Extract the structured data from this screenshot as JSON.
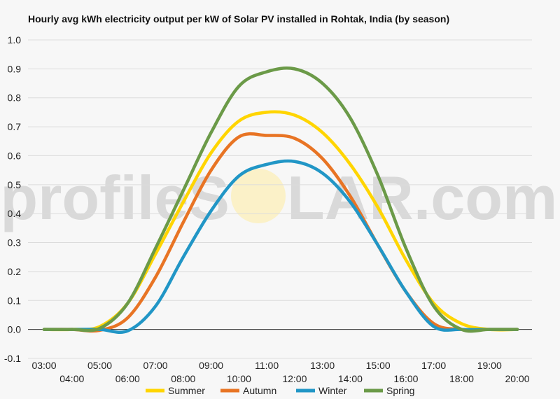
{
  "watermark": {
    "left": "profileS",
    "right": "LAR.com"
  },
  "chart_data": {
    "type": "line",
    "title": "Hourly avg kWh electricity output per kW of Solar PV installed in Rohtak, India (by season)",
    "xlabel": "",
    "ylabel": "",
    "ylim": [
      -0.1,
      1.0
    ],
    "yticks": [
      "-0.1",
      "0.0",
      "0.1",
      "0.2",
      "0.3",
      "0.4",
      "0.5",
      "0.6",
      "0.7",
      "0.8",
      "0.9",
      "1.0"
    ],
    "x": [
      "03:00",
      "04:00",
      "05:00",
      "06:00",
      "07:00",
      "08:00",
      "09:00",
      "10:00",
      "11:00",
      "12:00",
      "13:00",
      "14:00",
      "15:00",
      "16:00",
      "17:00",
      "18:00",
      "19:00",
      "20:00"
    ],
    "grid": true,
    "legend_position": "bottom",
    "series": [
      {
        "name": "Summer",
        "color": "#ffd500",
        "values": [
          0.0,
          0.0,
          0.01,
          0.09,
          0.26,
          0.44,
          0.61,
          0.72,
          0.75,
          0.74,
          0.68,
          0.57,
          0.42,
          0.24,
          0.09,
          0.02,
          0.0,
          0.0
        ]
      },
      {
        "name": "Autumn",
        "color": "#e87424",
        "values": [
          0.0,
          0.0,
          -0.003,
          0.04,
          0.18,
          0.37,
          0.55,
          0.665,
          0.67,
          0.66,
          0.59,
          0.46,
          0.29,
          0.13,
          0.02,
          0.0,
          0.0,
          0.0
        ]
      },
      {
        "name": "Winter",
        "color": "#2196c6",
        "values": [
          0.0,
          0.0,
          0.0,
          -0.005,
          0.08,
          0.25,
          0.41,
          0.53,
          0.57,
          0.58,
          0.54,
          0.44,
          0.29,
          0.13,
          0.01,
          0.0,
          0.0,
          0.0
        ]
      },
      {
        "name": "Spring",
        "color": "#6b9a48",
        "values": [
          0.0,
          0.0,
          0.004,
          0.09,
          0.28,
          0.48,
          0.68,
          0.84,
          0.89,
          0.9,
          0.85,
          0.73,
          0.53,
          0.28,
          0.08,
          0.0,
          0.0,
          0.0
        ]
      }
    ]
  }
}
